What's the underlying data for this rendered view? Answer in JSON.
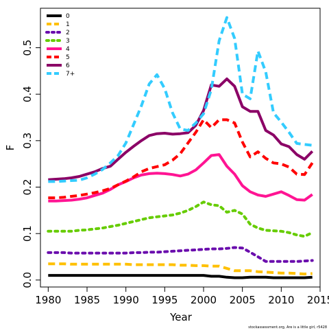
{
  "chart_data": {
    "type": "line",
    "title": "",
    "xlabel": "Year",
    "ylabel": "F",
    "xlim": [
      1979,
      2015
    ],
    "ylim": [
      -0.015,
      0.585
    ],
    "xticks": [
      1980,
      1985,
      1990,
      1995,
      2000,
      2005,
      2010,
      2015
    ],
    "yticks": [
      0.0,
      0.1,
      0.2,
      0.3,
      0.4,
      0.5
    ],
    "ytick_labels": [
      "0.0",
      "0.1",
      "0.2",
      "0.3",
      "0.4",
      "0.5"
    ],
    "grid": false,
    "legend_position": "top-left",
    "footer": "stockassessment.org,  Are  is  a  little  girl,  r5428",
    "x": [
      1980,
      1981,
      1982,
      1983,
      1984,
      1985,
      1986,
      1987,
      1988,
      1989,
      1990,
      1991,
      1992,
      1993,
      1994,
      1995,
      1996,
      1997,
      1998,
      1999,
      2000,
      2001,
      2002,
      2003,
      2004,
      2005,
      2006,
      2007,
      2008,
      2009,
      2010,
      2011,
      2012,
      2013,
      2014
    ],
    "series": [
      {
        "name": "0",
        "color": "#000000",
        "dash": "solid",
        "values": [
          0.01,
          0.01,
          0.01,
          0.01,
          0.01,
          0.01,
          0.01,
          0.01,
          0.01,
          0.01,
          0.01,
          0.01,
          0.01,
          0.01,
          0.01,
          0.01,
          0.01,
          0.01,
          0.01,
          0.01,
          0.01,
          0.008,
          0.008,
          0.006,
          0.005,
          0.005,
          0.006,
          0.006,
          0.006,
          0.005,
          0.005,
          0.005,
          0.005,
          0.005,
          0.006
        ]
      },
      {
        "name": "1",
        "color": "#FFC000",
        "dash": "dashed",
        "values": [
          0.035,
          0.035,
          0.035,
          0.034,
          0.034,
          0.034,
          0.034,
          0.034,
          0.034,
          0.034,
          0.034,
          0.033,
          0.033,
          0.033,
          0.033,
          0.033,
          0.033,
          0.032,
          0.032,
          0.031,
          0.031,
          0.03,
          0.03,
          0.025,
          0.02,
          0.02,
          0.02,
          0.018,
          0.017,
          0.016,
          0.015,
          0.015,
          0.014,
          0.013,
          0.014
        ]
      },
      {
        "name": "2",
        "color": "#6A0DAD",
        "dash": "dotted",
        "values": [
          0.059,
          0.059,
          0.059,
          0.058,
          0.058,
          0.058,
          0.058,
          0.058,
          0.058,
          0.058,
          0.058,
          0.059,
          0.059,
          0.06,
          0.06,
          0.061,
          0.062,
          0.063,
          0.064,
          0.065,
          0.066,
          0.067,
          0.067,
          0.068,
          0.07,
          0.069,
          0.06,
          0.05,
          0.04,
          0.04,
          0.04,
          0.04,
          0.04,
          0.041,
          0.042
        ]
      },
      {
        "name": "3",
        "color": "#66CC00",
        "dash": "dotted",
        "values": [
          0.105,
          0.105,
          0.105,
          0.105,
          0.107,
          0.108,
          0.11,
          0.112,
          0.115,
          0.118,
          0.122,
          0.126,
          0.13,
          0.134,
          0.136,
          0.138,
          0.14,
          0.144,
          0.15,
          0.158,
          0.168,
          0.162,
          0.16,
          0.146,
          0.15,
          0.142,
          0.12,
          0.112,
          0.107,
          0.106,
          0.105,
          0.102,
          0.097,
          0.094,
          0.102
        ]
      },
      {
        "name": "4",
        "color": "#FF1493",
        "dash": "solid",
        "values": [
          0.17,
          0.17,
          0.171,
          0.172,
          0.174,
          0.177,
          0.182,
          0.187,
          0.195,
          0.205,
          0.212,
          0.22,
          0.226,
          0.229,
          0.23,
          0.229,
          0.227,
          0.224,
          0.228,
          0.237,
          0.252,
          0.268,
          0.27,
          0.245,
          0.228,
          0.203,
          0.19,
          0.183,
          0.18,
          0.185,
          0.19,
          0.182,
          0.173,
          0.172,
          0.184
        ]
      },
      {
        "name": "5",
        "color": "#FF0000",
        "dash": "dashed",
        "values": [
          0.177,
          0.177,
          0.178,
          0.18,
          0.182,
          0.185,
          0.188,
          0.192,
          0.197,
          0.205,
          0.213,
          0.222,
          0.233,
          0.24,
          0.244,
          0.248,
          0.258,
          0.272,
          0.295,
          0.318,
          0.345,
          0.328,
          0.345,
          0.345,
          0.338,
          0.297,
          0.265,
          0.276,
          0.262,
          0.252,
          0.25,
          0.243,
          0.228,
          0.227,
          0.252
        ]
      },
      {
        "name": "6",
        "color": "#8B0066",
        "dash": "solid",
        "values": [
          0.216,
          0.217,
          0.218,
          0.22,
          0.223,
          0.228,
          0.233,
          0.24,
          0.245,
          0.26,
          0.275,
          0.288,
          0.3,
          0.311,
          0.315,
          0.316,
          0.314,
          0.315,
          0.317,
          0.333,
          0.365,
          0.42,
          0.417,
          0.433,
          0.417,
          0.373,
          0.363,
          0.363,
          0.322,
          0.312,
          0.293,
          0.287,
          0.27,
          0.26,
          0.277
        ]
      },
      {
        "name": "7+",
        "color": "#33CCFF",
        "dash": "dashed",
        "values": [
          0.212,
          0.212,
          0.213,
          0.214,
          0.215,
          0.22,
          0.228,
          0.238,
          0.252,
          0.268,
          0.295,
          0.335,
          0.375,
          0.422,
          0.442,
          0.412,
          0.36,
          0.325,
          0.322,
          0.338,
          0.358,
          0.41,
          0.515,
          0.565,
          0.52,
          0.4,
          0.39,
          0.493,
          0.448,
          0.36,
          0.34,
          0.318,
          0.294,
          0.292,
          0.29
        ]
      }
    ]
  }
}
